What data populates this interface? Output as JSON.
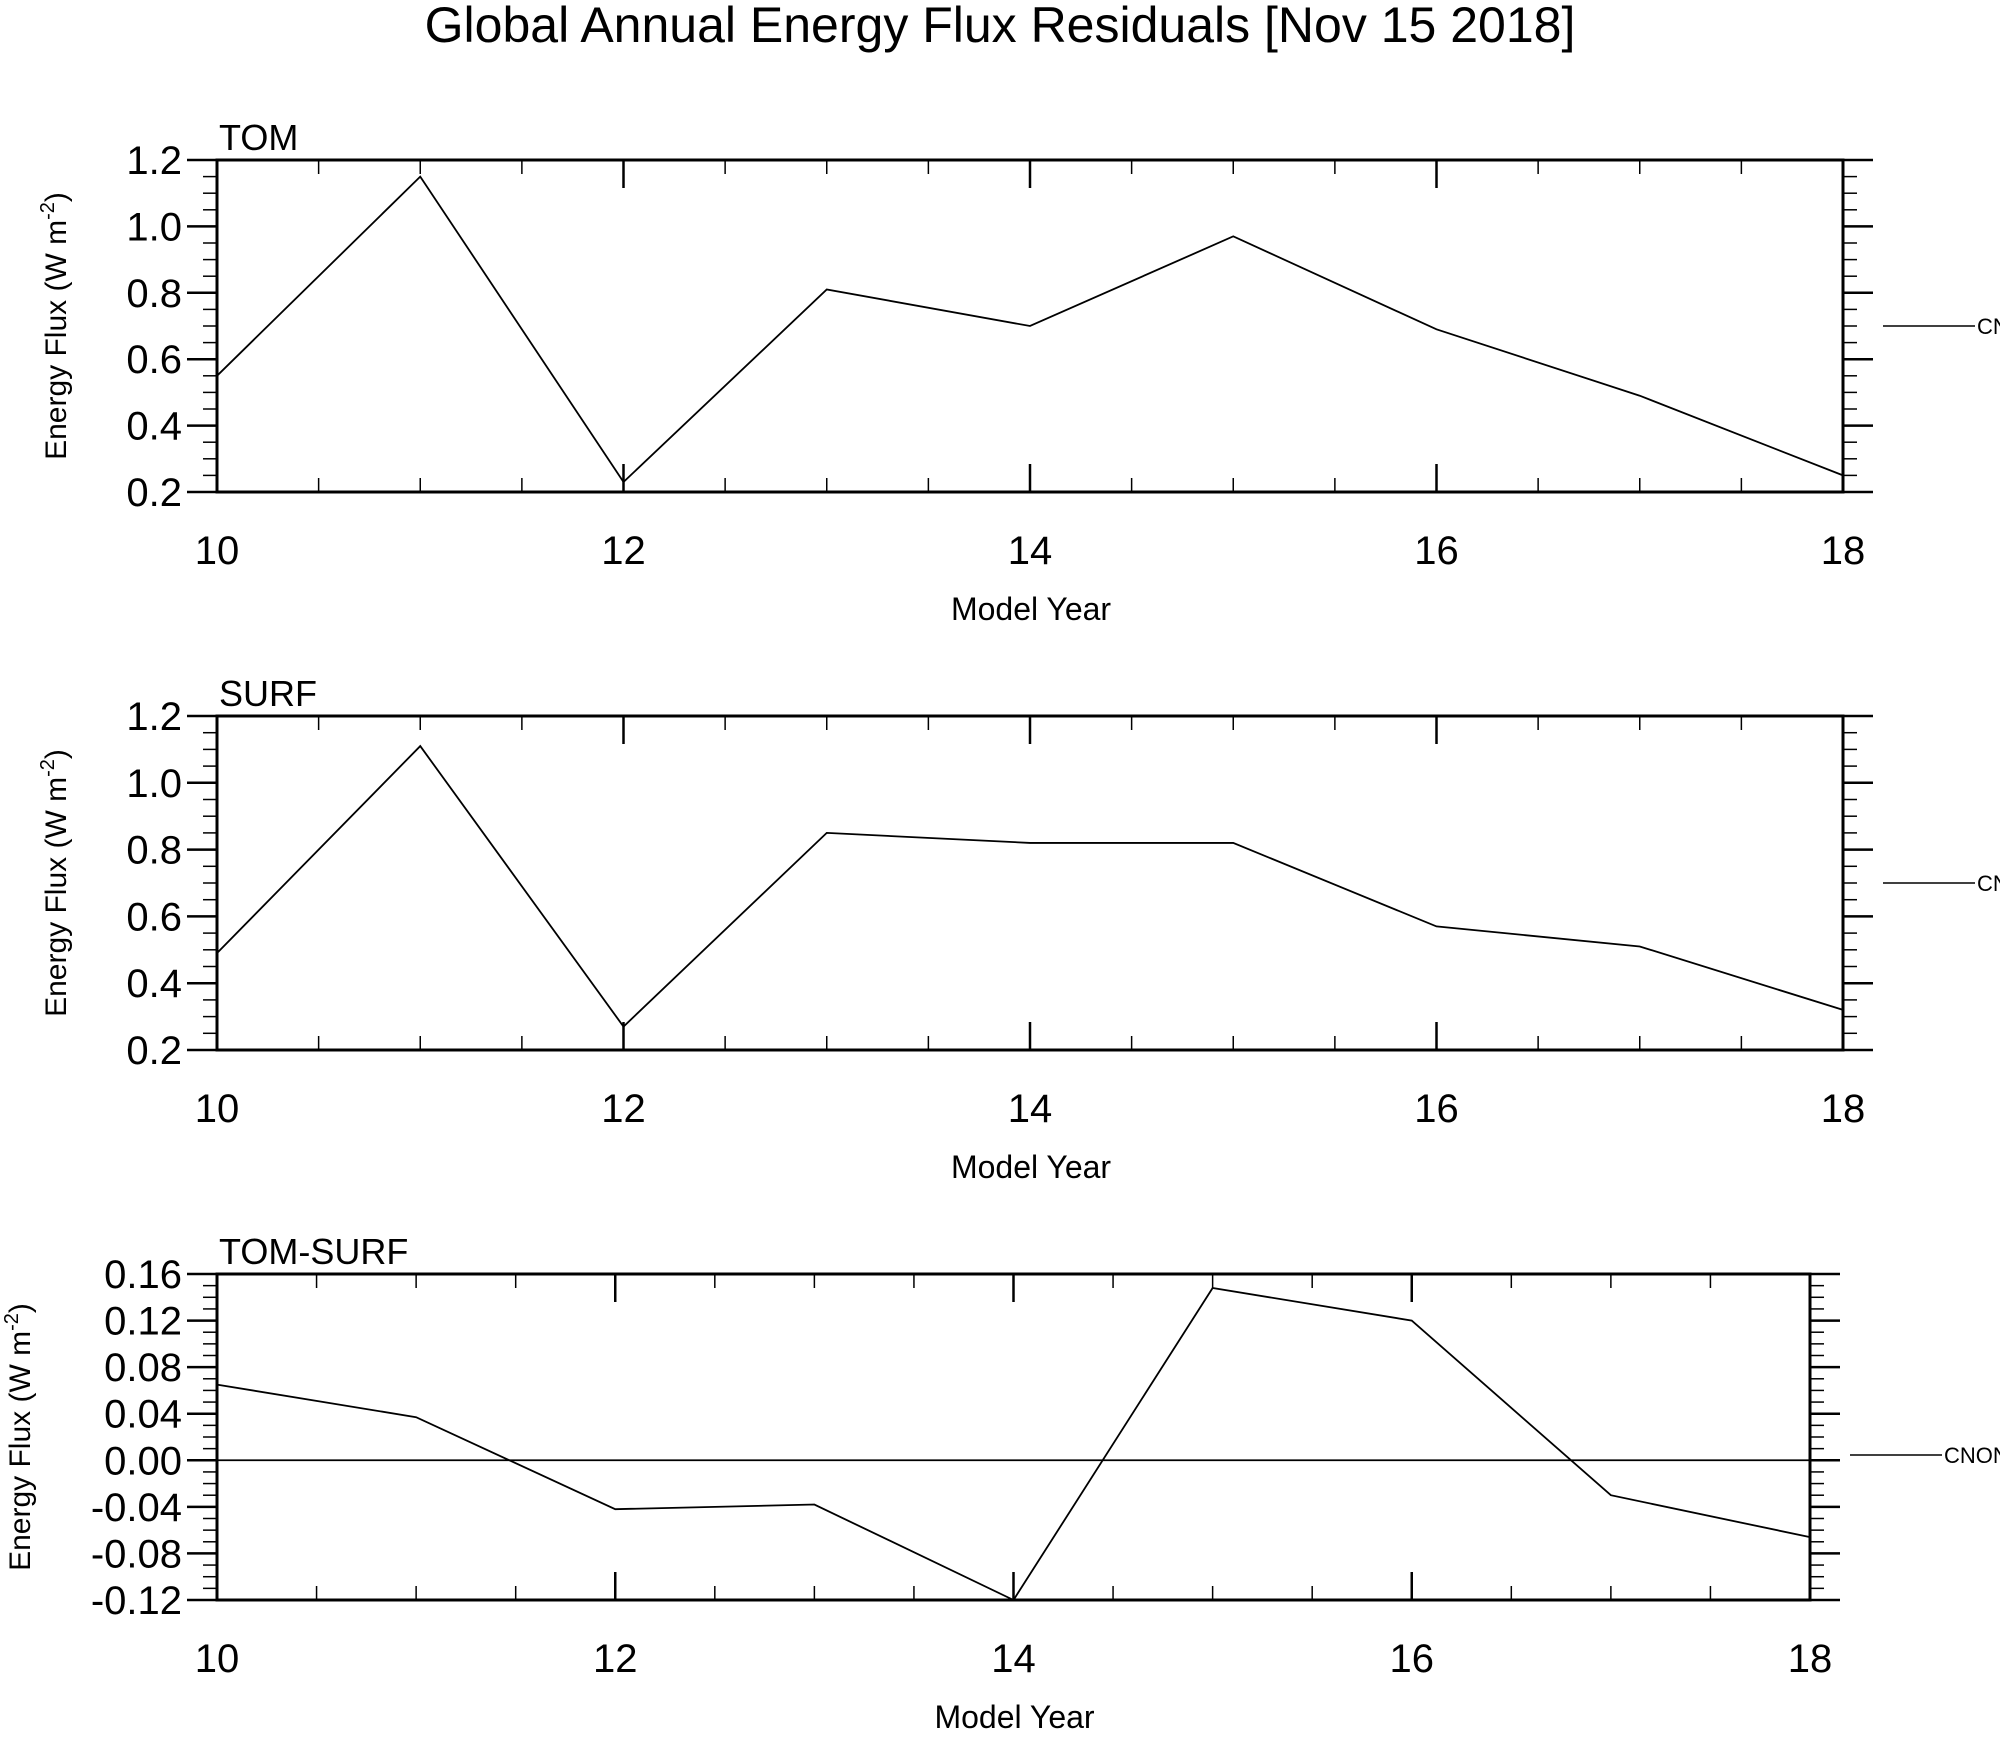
{
  "title": "Global Annual Energy Flux Residuals [Nov 15 2018]",
  "chart_data": [
    {
      "type": "line",
      "panel_label": "TOM",
      "xlabel": "Model Year",
      "ylabel": "Energy Flux (W m",
      "ylabel_sup": "-2",
      "ylabel_close": ")",
      "xlim": [
        10,
        18
      ],
      "ylim": [
        0.2,
        1.2
      ],
      "x_ticks": [
        10,
        12,
        14,
        16,
        18
      ],
      "y_ticks": [
        "0.2",
        "0.4",
        "0.6",
        "0.8",
        "1.0",
        "1.2"
      ],
      "legend": "CNON",
      "grid": false,
      "series": [
        {
          "name": "CNON",
          "x": [
            10,
            11,
            12,
            13,
            14,
            15,
            16,
            17,
            18
          ],
          "values": [
            0.55,
            1.15,
            0.23,
            0.81,
            0.7,
            0.97,
            0.69,
            0.49,
            0.25
          ]
        }
      ]
    },
    {
      "type": "line",
      "panel_label": "SURF",
      "xlabel": "Model Year",
      "ylabel": "Energy Flux (W m",
      "ylabel_sup": "-2",
      "ylabel_close": ")",
      "xlim": [
        10,
        18
      ],
      "ylim": [
        0.2,
        1.2
      ],
      "x_ticks": [
        10,
        12,
        14,
        16,
        18
      ],
      "y_ticks": [
        "0.2",
        "0.4",
        "0.6",
        "0.8",
        "1.0",
        "1.2"
      ],
      "legend": "CNON",
      "grid": false,
      "series": [
        {
          "name": "CNON",
          "x": [
            10,
            11,
            12,
            13,
            14,
            15,
            16,
            17,
            18
          ],
          "values": [
            0.49,
            1.11,
            0.27,
            0.85,
            0.82,
            0.82,
            0.57,
            0.51,
            0.32
          ]
        }
      ]
    },
    {
      "type": "line",
      "panel_label": "TOM-SURF",
      "xlabel": "Model Year",
      "ylabel": "Energy Flux (W m",
      "ylabel_sup": "-2",
      "ylabel_close": ")",
      "xlim": [
        10,
        18
      ],
      "ylim": [
        -0.12,
        0.16
      ],
      "x_ticks": [
        10,
        12,
        14,
        16,
        18
      ],
      "y_ticks": [
        "-0.12",
        "-0.08",
        "-0.04",
        "0.00",
        "0.04",
        "0.08",
        "0.12",
        "0.16"
      ],
      "zero_line": 0,
      "legend": "CNON",
      "grid": false,
      "series": [
        {
          "name": "CNON",
          "x": [
            10,
            11,
            12,
            13,
            14,
            15,
            16,
            17,
            18
          ],
          "values": [
            0.065,
            0.037,
            -0.042,
            -0.038,
            -0.12,
            0.148,
            0.12,
            -0.03,
            -0.066
          ]
        }
      ]
    }
  ]
}
